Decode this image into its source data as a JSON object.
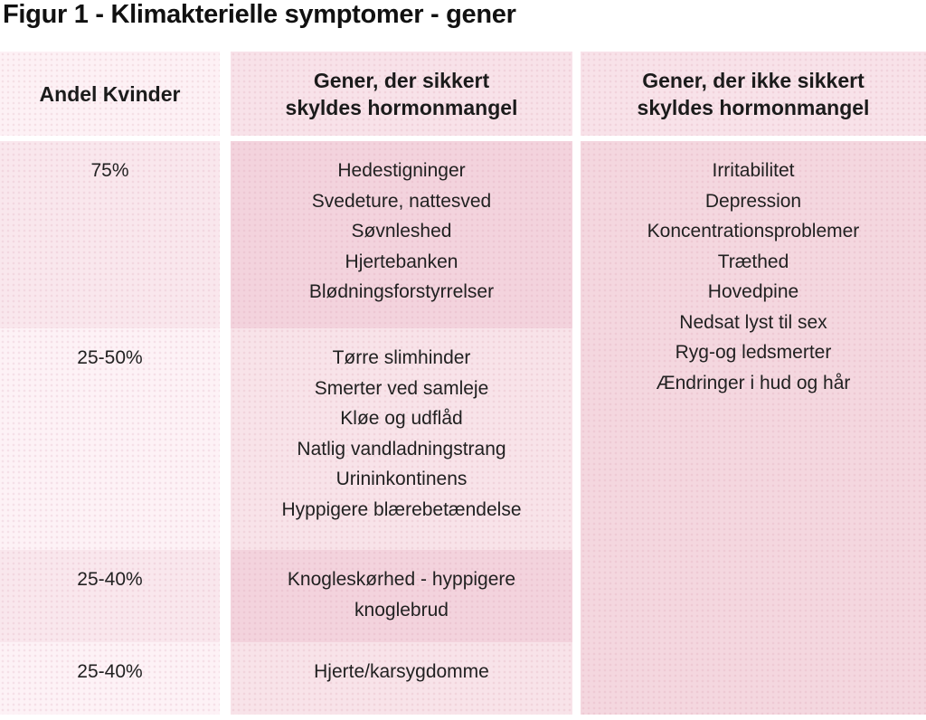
{
  "title": "Figur 1 - Klimakterielle symptomer - gener",
  "colors": {
    "header_left_bg": "#fdf1f5",
    "header_bg": "#f8e2e9",
    "share_col_dark_bg": "#f9e7ed",
    "share_col_light_bg": "#fdf2f6",
    "certain_col_dark_bg": "#f3d3dd",
    "certain_col_light_bg": "#f8e3e9",
    "uncertain_col_bg": "#f4d7df",
    "text": "#212121"
  },
  "table": {
    "header_lines": [
      [
        "Andel Kvinder"
      ],
      [
        "Gener, der sikkert",
        "skyldes hormonmangel"
      ],
      [
        "Gener, der ikke sikkert",
        "skyldes hormonmangel"
      ]
    ],
    "rows": [
      {
        "share": "75%",
        "symptoms": [
          "Hedestigninger",
          "Svedeture, nattesved",
          "Søvnleshed",
          "Hjertebanken",
          "Blødningsforstyrrelser"
        ]
      },
      {
        "share": "25-50%",
        "symptoms": [
          "Tørre slimhinder",
          "Smerter ved samleje",
          "Kløe og udflåd",
          "Natlig vandladningstrang",
          "Urininkontinens",
          "Hyppigere blærebetændelse"
        ]
      },
      {
        "share": "25-40%",
        "symptoms": [
          "Knogleskørhed - hyppigere",
          "knoglebrud"
        ]
      },
      {
        "share": "25-40%",
        "symptoms": [
          "Hjerte/karsygdomme"
        ]
      }
    ],
    "uncertain_symptoms": [
      "Irritabilitet",
      "Depression",
      "Koncentrationsproblemer",
      "Træthed",
      "Hovedpine",
      "Nedsat lyst til sex",
      "Ryg-og ledsmerter",
      "Ændringer i hud og hår"
    ]
  },
  "chart_data": {
    "type": "table",
    "title": "Figur 1 - Klimakterielle symptomer - gener",
    "columns": [
      "Andel Kvinder",
      "Gener, der sikkert skyldes hormonmangel",
      "Gener, der ikke sikkert skyldes hormonmangel"
    ],
    "rows": [
      [
        "75%",
        "Hedestigninger; Svedeture, nattesved; Søvnleshed; Hjertebanken; Blødningsforstyrrelser",
        "Irritabilitet; Depression; Koncentrationsproblemer; Træthed; Hovedpine; Nedsat lyst til sex; Ryg-og ledsmerter; Ændringer i hud og hår"
      ],
      [
        "25-50%",
        "Tørre slimhinder; Smerter ved samleje; Kløe og udflåd; Natlig vandladningstrang; Urininkontinens; Hyppigere blærebetændelse",
        ""
      ],
      [
        "25-40%",
        "Knogleskørhed - hyppigere knoglebrud",
        ""
      ],
      [
        "25-40%",
        "Hjerte/karsygdomme",
        ""
      ]
    ],
    "legend_position": "none",
    "grid": false
  }
}
